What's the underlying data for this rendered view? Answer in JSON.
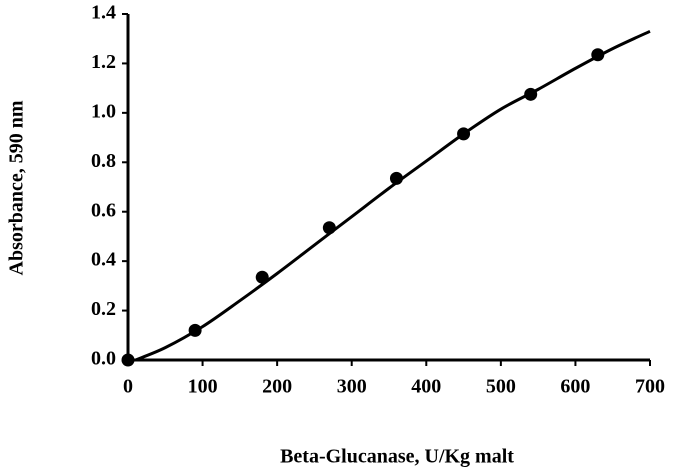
{
  "chart_data": {
    "type": "scatter",
    "x_label": "Beta-Glucanase, U/Kg malt",
    "y_label": "Absorbance, 590 nm",
    "xlim": [
      0,
      700
    ],
    "xticks": [
      0,
      100,
      200,
      300,
      400,
      500,
      600,
      700
    ],
    "ylim": [
      0,
      1.4
    ],
    "yticks": [
      {
        "value": 0,
        "label": "0.0"
      },
      0.2,
      0.4,
      0.6,
      0.8,
      {
        "value": 1,
        "label": "1.0"
      },
      1.2,
      1.4
    ],
    "grid": false,
    "series": [
      {
        "mode": "markers",
        "color": "#000000",
        "x": [
          0,
          90,
          180,
          270,
          360,
          450,
          540,
          630
        ],
        "values": [
          0,
          0.12,
          0.335,
          0.535,
          0.735,
          0.915,
          1.075,
          1.235
        ]
      },
      {
        "mode": "line",
        "color": "#000000",
        "x": [
          10,
          50,
          100,
          150,
          200,
          250,
          300,
          350,
          400,
          450,
          500,
          550,
          600,
          650,
          700
        ],
        "values": [
          0,
          0.05,
          0.135,
          0.24,
          0.35,
          0.465,
          0.58,
          0.695,
          0.805,
          0.915,
          1.015,
          1.095,
          1.18,
          1.26,
          1.33
        ]
      }
    ]
  }
}
